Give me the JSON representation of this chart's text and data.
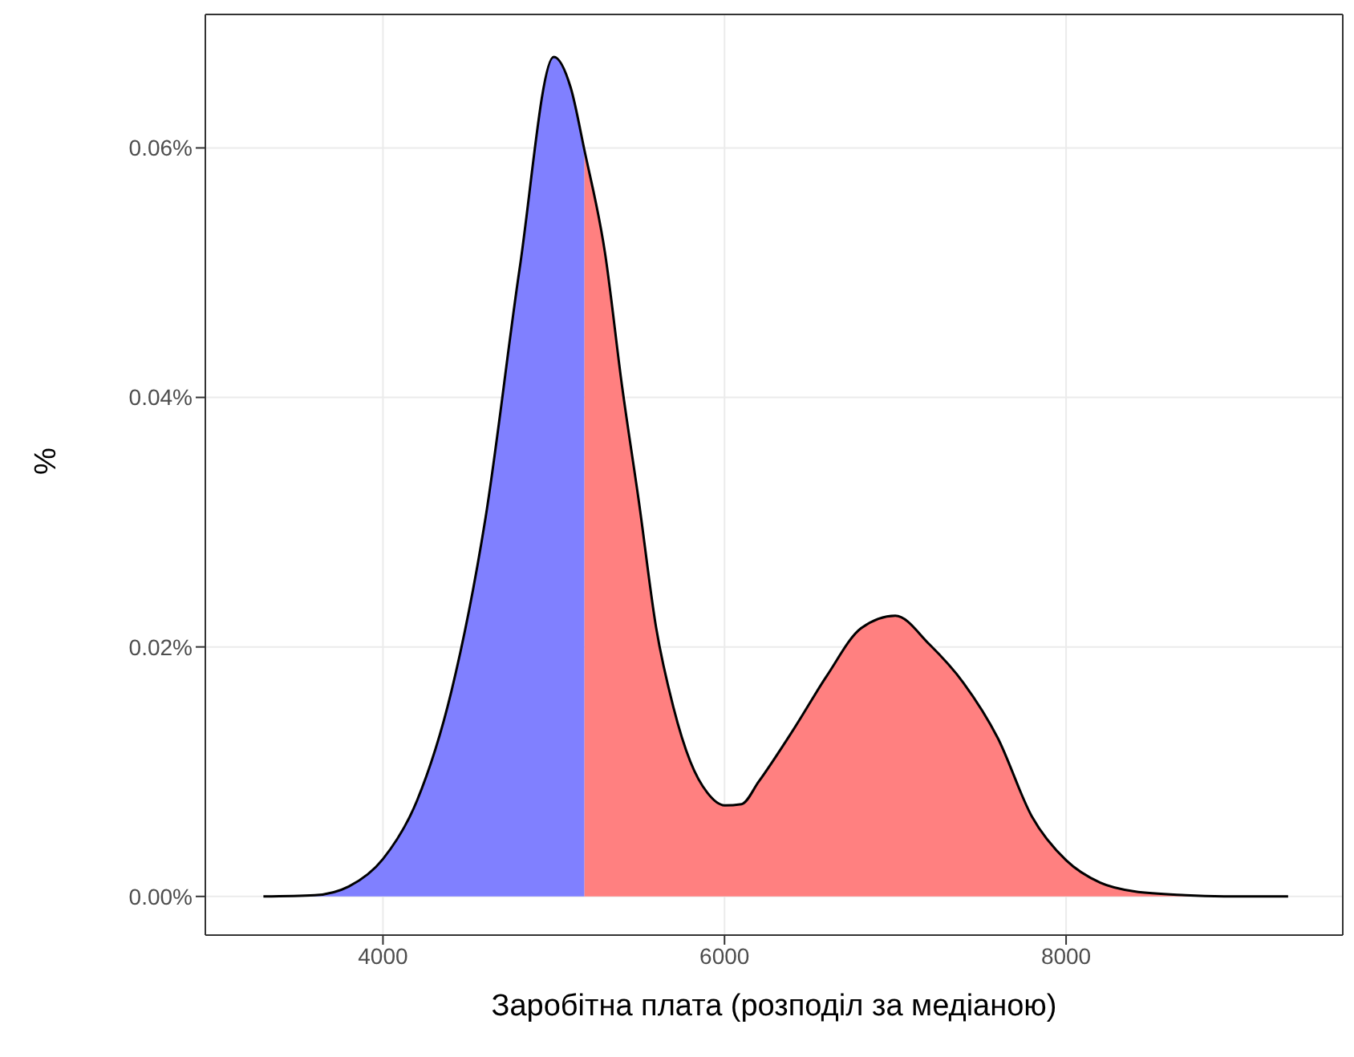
{
  "chart_data": {
    "type": "area",
    "xlabel": "Заробітна плата (розподіл за медіаною)",
    "ylabel": "%",
    "xlim": [
      2960,
      9620
    ],
    "xticks": [
      4000,
      6000,
      8000
    ],
    "ylim": [
      -0.0031,
      0.0707
    ],
    "yticks": [
      {
        "value": 0,
        "label": "0.00%"
      },
      {
        "value": 0.02,
        "label": "0.02%"
      },
      {
        "value": 0.04,
        "label": "0.04%"
      },
      {
        "value": 0.06,
        "label": "0.06%"
      }
    ],
    "grid": true,
    "legend": false,
    "series": [
      {
        "color": "#8080ff",
        "x": [
          3300,
          3600,
          3800,
          4000,
          4200,
          4400,
          4600,
          4800,
          5000,
          5100,
          5180
        ],
        "values": [
          0,
          0.0001,
          0.0008,
          0.003,
          0.0077,
          0.0164,
          0.0303,
          0.0503,
          0.0673,
          0.0648,
          0.0598
        ]
      },
      {
        "color": "#ff8080",
        "x": [
          5180,
          5300,
          5400,
          5500,
          5600,
          5700,
          5800,
          5900,
          6000,
          6100,
          6200,
          6400,
          6600,
          6800,
          7000,
          7200,
          7400,
          7600,
          7800,
          8000,
          8200,
          8400,
          8700,
          9000,
          9300
        ],
        "values": [
          0.0598,
          0.0516,
          0.0409,
          0.0315,
          0.0215,
          0.0152,
          0.0108,
          0.0083,
          0.0073,
          0.0074,
          0.0092,
          0.0133,
          0.0177,
          0.0215,
          0.0225,
          0.0202,
          0.0171,
          0.0127,
          0.0064,
          0.0029,
          0.0011,
          0.0004,
          0.0001,
          0,
          0
        ]
      },
      {
        "type": "line",
        "color": "#000000",
        "x": [
          3300,
          3600,
          3800,
          4000,
          4200,
          4400,
          4600,
          4800,
          5000,
          5100,
          5180,
          5300,
          5400,
          5500,
          5600,
          5700,
          5800,
          5900,
          6000,
          6100,
          6200,
          6400,
          6600,
          6800,
          7000,
          7200,
          7400,
          7600,
          7800,
          8000,
          8200,
          8400,
          8700,
          9000,
          9300
        ],
        "values": [
          0,
          0.0001,
          0.0008,
          0.003,
          0.0077,
          0.0164,
          0.0303,
          0.0503,
          0.0673,
          0.0648,
          0.0598,
          0.0516,
          0.0409,
          0.0315,
          0.0215,
          0.0152,
          0.0108,
          0.0083,
          0.0073,
          0.0074,
          0.0092,
          0.0133,
          0.0177,
          0.0215,
          0.0225,
          0.0202,
          0.0171,
          0.0127,
          0.0064,
          0.0029,
          0.0011,
          0.0004,
          0.0001,
          0,
          0
        ]
      }
    ]
  }
}
